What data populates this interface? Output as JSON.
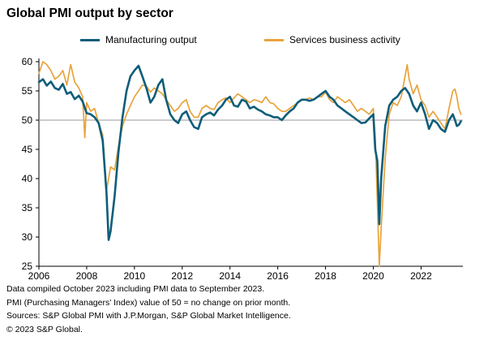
{
  "chart_data": {
    "type": "line",
    "title": "Global PMI output by sector",
    "xlabel": "",
    "ylabel": "",
    "xlim": [
      2006,
      2023.75
    ],
    "ylim": [
      25,
      60
    ],
    "x_ticks": [
      2006,
      2008,
      2010,
      2012,
      2014,
      2016,
      2018,
      2020,
      2022
    ],
    "y_ticks": [
      25,
      30,
      35,
      40,
      45,
      50,
      55,
      60
    ],
    "reference_line": 50,
    "grid": false,
    "legend_position": "top",
    "series": [
      {
        "name": "Manufacturing output",
        "color": "#0d5d7a",
        "points": [
          [
            2006.0,
            56.5
          ],
          [
            2006.17,
            57.0
          ],
          [
            2006.33,
            55.9
          ],
          [
            2006.5,
            56.6
          ],
          [
            2006.67,
            55.5
          ],
          [
            2006.83,
            55.2
          ],
          [
            2007.0,
            56.2
          ],
          [
            2007.17,
            54.5
          ],
          [
            2007.33,
            54.8
          ],
          [
            2007.5,
            53.6
          ],
          [
            2007.67,
            54.2
          ],
          [
            2007.83,
            53.2
          ],
          [
            2008.0,
            51.2
          ],
          [
            2008.17,
            51.0
          ],
          [
            2008.33,
            50.5
          ],
          [
            2008.5,
            49.5
          ],
          [
            2008.67,
            46.5
          ],
          [
            2008.83,
            37.5
          ],
          [
            2008.92,
            29.5
          ],
          [
            2009.0,
            31.0
          ],
          [
            2009.17,
            37.0
          ],
          [
            2009.33,
            44.5
          ],
          [
            2009.5,
            50.5
          ],
          [
            2009.67,
            55.0
          ],
          [
            2009.83,
            57.5
          ],
          [
            2010.0,
            58.5
          ],
          [
            2010.17,
            59.3
          ],
          [
            2010.33,
            57.5
          ],
          [
            2010.5,
            55.5
          ],
          [
            2010.67,
            53.0
          ],
          [
            2010.83,
            54.0
          ],
          [
            2011.0,
            56.0
          ],
          [
            2011.17,
            57.0
          ],
          [
            2011.33,
            53.5
          ],
          [
            2011.5,
            51.0
          ],
          [
            2011.67,
            50.0
          ],
          [
            2011.83,
            49.5
          ],
          [
            2012.0,
            51.0
          ],
          [
            2012.17,
            51.5
          ],
          [
            2012.33,
            50.0
          ],
          [
            2012.5,
            48.8
          ],
          [
            2012.67,
            48.5
          ],
          [
            2012.83,
            50.5
          ],
          [
            2013.0,
            51.0
          ],
          [
            2013.17,
            51.3
          ],
          [
            2013.33,
            50.8
          ],
          [
            2013.5,
            51.8
          ],
          [
            2013.67,
            52.5
          ],
          [
            2013.83,
            53.5
          ],
          [
            2014.0,
            54.0
          ],
          [
            2014.17,
            52.5
          ],
          [
            2014.33,
            52.3
          ],
          [
            2014.5,
            53.5
          ],
          [
            2014.67,
            53.2
          ],
          [
            2014.83,
            52.0
          ],
          [
            2015.0,
            52.3
          ],
          [
            2015.17,
            51.8
          ],
          [
            2015.33,
            51.5
          ],
          [
            2015.5,
            51.0
          ],
          [
            2015.67,
            50.8
          ],
          [
            2015.83,
            50.5
          ],
          [
            2016.0,
            50.5
          ],
          [
            2016.17,
            50.0
          ],
          [
            2016.33,
            50.8
          ],
          [
            2016.5,
            51.5
          ],
          [
            2016.67,
            52.0
          ],
          [
            2016.83,
            53.0
          ],
          [
            2017.0,
            53.5
          ],
          [
            2017.17,
            53.5
          ],
          [
            2017.33,
            53.3
          ],
          [
            2017.5,
            53.5
          ],
          [
            2017.67,
            54.0
          ],
          [
            2017.83,
            54.5
          ],
          [
            2018.0,
            55.0
          ],
          [
            2018.17,
            54.0
          ],
          [
            2018.33,
            53.5
          ],
          [
            2018.5,
            52.5
          ],
          [
            2018.67,
            52.0
          ],
          [
            2018.83,
            51.5
          ],
          [
            2019.0,
            51.0
          ],
          [
            2019.17,
            50.5
          ],
          [
            2019.33,
            50.0
          ],
          [
            2019.5,
            49.5
          ],
          [
            2019.67,
            49.6
          ],
          [
            2019.83,
            50.3
          ],
          [
            2020.0,
            51.0
          ],
          [
            2020.08,
            45.0
          ],
          [
            2020.17,
            43.0
          ],
          [
            2020.25,
            32.2
          ],
          [
            2020.33,
            40.0
          ],
          [
            2020.5,
            49.0
          ],
          [
            2020.67,
            52.5
          ],
          [
            2020.83,
            53.5
          ],
          [
            2021.0,
            54.0
          ],
          [
            2021.17,
            55.0
          ],
          [
            2021.33,
            55.5
          ],
          [
            2021.5,
            54.5
          ],
          [
            2021.67,
            52.5
          ],
          [
            2021.83,
            51.5
          ],
          [
            2022.0,
            53.0
          ],
          [
            2022.17,
            51.0
          ],
          [
            2022.33,
            48.5
          ],
          [
            2022.5,
            50.0
          ],
          [
            2022.67,
            49.5
          ],
          [
            2022.83,
            48.5
          ],
          [
            2023.0,
            48.0
          ],
          [
            2023.17,
            50.0
          ],
          [
            2023.33,
            51.0
          ],
          [
            2023.42,
            50.0
          ],
          [
            2023.5,
            49.0
          ],
          [
            2023.58,
            49.2
          ],
          [
            2023.67,
            49.8
          ]
        ]
      },
      {
        "name": "Services business activity",
        "color": "#e8a33d",
        "points": [
          [
            2006.0,
            58.0
          ],
          [
            2006.17,
            60.0
          ],
          [
            2006.33,
            59.5
          ],
          [
            2006.5,
            58.5
          ],
          [
            2006.67,
            57.0
          ],
          [
            2006.83,
            57.5
          ],
          [
            2007.0,
            58.5
          ],
          [
            2007.17,
            56.0
          ],
          [
            2007.33,
            59.5
          ],
          [
            2007.5,
            56.5
          ],
          [
            2007.67,
            55.5
          ],
          [
            2007.83,
            54.0
          ],
          [
            2007.92,
            47.0
          ],
          [
            2008.0,
            53.0
          ],
          [
            2008.17,
            51.5
          ],
          [
            2008.33,
            52.0
          ],
          [
            2008.5,
            49.5
          ],
          [
            2008.67,
            47.5
          ],
          [
            2008.83,
            38.0
          ],
          [
            2008.92,
            40.0
          ],
          [
            2009.0,
            42.0
          ],
          [
            2009.17,
            41.5
          ],
          [
            2009.33,
            45.5
          ],
          [
            2009.5,
            49.0
          ],
          [
            2009.67,
            51.0
          ],
          [
            2009.83,
            52.5
          ],
          [
            2010.0,
            54.0
          ],
          [
            2010.17,
            55.0
          ],
          [
            2010.33,
            56.0
          ],
          [
            2010.5,
            55.8
          ],
          [
            2010.67,
            54.8
          ],
          [
            2010.83,
            55.5
          ],
          [
            2011.0,
            55.0
          ],
          [
            2011.17,
            54.5
          ],
          [
            2011.33,
            53.5
          ],
          [
            2011.5,
            52.5
          ],
          [
            2011.67,
            51.5
          ],
          [
            2011.83,
            52.0
          ],
          [
            2012.0,
            53.0
          ],
          [
            2012.17,
            53.5
          ],
          [
            2012.33,
            51.5
          ],
          [
            2012.5,
            50.5
          ],
          [
            2012.67,
            50.5
          ],
          [
            2012.83,
            52.0
          ],
          [
            2013.0,
            52.5
          ],
          [
            2013.17,
            52.0
          ],
          [
            2013.33,
            51.8
          ],
          [
            2013.5,
            53.0
          ],
          [
            2013.67,
            53.5
          ],
          [
            2013.83,
            53.8
          ],
          [
            2014.0,
            53.0
          ],
          [
            2014.17,
            53.8
          ],
          [
            2014.33,
            54.5
          ],
          [
            2014.5,
            54.0
          ],
          [
            2014.67,
            53.5
          ],
          [
            2014.83,
            53.0
          ],
          [
            2015.0,
            53.5
          ],
          [
            2015.17,
            53.3
          ],
          [
            2015.33,
            53.0
          ],
          [
            2015.5,
            54.0
          ],
          [
            2015.67,
            53.0
          ],
          [
            2015.83,
            52.8
          ],
          [
            2016.0,
            52.0
          ],
          [
            2016.17,
            51.5
          ],
          [
            2016.33,
            51.5
          ],
          [
            2016.5,
            52.0
          ],
          [
            2016.67,
            52.5
          ],
          [
            2016.83,
            53.0
          ],
          [
            2017.0,
            53.5
          ],
          [
            2017.17,
            53.5
          ],
          [
            2017.33,
            53.8
          ],
          [
            2017.5,
            53.5
          ],
          [
            2017.67,
            54.0
          ],
          [
            2017.83,
            54.0
          ],
          [
            2018.0,
            54.8
          ],
          [
            2018.17,
            53.5
          ],
          [
            2018.33,
            53.0
          ],
          [
            2018.5,
            54.0
          ],
          [
            2018.67,
            53.5
          ],
          [
            2018.83,
            53.0
          ],
          [
            2019.0,
            53.5
          ],
          [
            2019.17,
            52.5
          ],
          [
            2019.33,
            51.5
          ],
          [
            2019.5,
            52.0
          ],
          [
            2019.67,
            51.5
          ],
          [
            2019.83,
            51.0
          ],
          [
            2020.0,
            52.0
          ],
          [
            2020.08,
            47.0
          ],
          [
            2020.17,
            36.0
          ],
          [
            2020.25,
            25.0
          ],
          [
            2020.33,
            31.5
          ],
          [
            2020.5,
            43.5
          ],
          [
            2020.67,
            51.0
          ],
          [
            2020.83,
            53.0
          ],
          [
            2021.0,
            52.5
          ],
          [
            2021.17,
            54.0
          ],
          [
            2021.33,
            57.5
          ],
          [
            2021.42,
            59.5
          ],
          [
            2021.5,
            57.0
          ],
          [
            2021.67,
            54.5
          ],
          [
            2021.83,
            56.0
          ],
          [
            2022.0,
            53.5
          ],
          [
            2022.17,
            52.5
          ],
          [
            2022.33,
            50.5
          ],
          [
            2022.5,
            51.5
          ],
          [
            2022.67,
            50.5
          ],
          [
            2022.83,
            49.5
          ],
          [
            2023.0,
            48.5
          ],
          [
            2023.17,
            52.0
          ],
          [
            2023.33,
            55.0
          ],
          [
            2023.42,
            55.3
          ],
          [
            2023.5,
            54.0
          ],
          [
            2023.58,
            52.0
          ],
          [
            2023.67,
            51.0
          ]
        ]
      }
    ],
    "notes": [
      "Data compiled October 2023 including PMI data to September 2023.",
      "PMI (Purchasing Managers' Index) value of 50 = no change on prior month.",
      "Sources: S&P Global PMI with J.P.Morgan, S&P Global Market Intelligence.",
      "© 2023 S&P Global."
    ]
  }
}
